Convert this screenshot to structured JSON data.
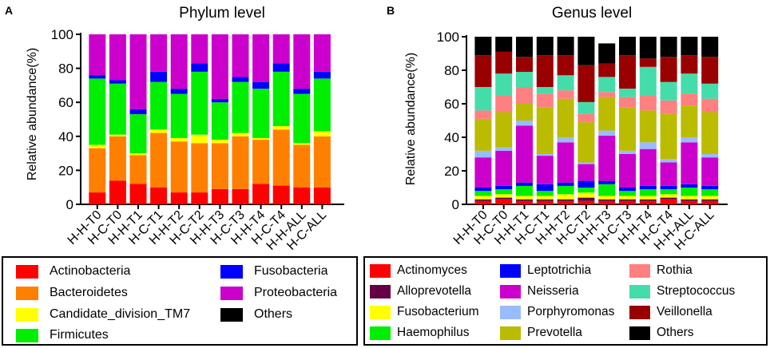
{
  "figure": {
    "panels": [
      {
        "letter": "A",
        "title": "Phylum level"
      },
      {
        "letter": "B",
        "title": "Genus level"
      }
    ],
    "ylabel": "Relative abundance(%)"
  },
  "chart_data": [
    {
      "type": "bar",
      "stacked": true,
      "title": "Phylum level",
      "xlabel": "",
      "ylabel": "Relative abundance(%)",
      "ylim": [
        0,
        100
      ],
      "yticks": [
        "0",
        "20",
        "40",
        "60",
        "80",
        "100"
      ],
      "categories": [
        "H-H-T0",
        "H-C-T0",
        "H-H-T1",
        "H-C-T1",
        "H-H-T2",
        "H-C-T2",
        "H-H-T3",
        "H-C-T3",
        "H-H-T4",
        "H-C-T4",
        "H-H-ALL",
        "H-C-ALL"
      ],
      "series": [
        {
          "name": "Actinobacteria",
          "color": "#ff0000",
          "values": [
            7,
            14,
            12,
            10,
            7,
            7,
            9,
            9,
            12,
            11,
            10,
            10
          ]
        },
        {
          "name": "Bacteroidetes",
          "color": "#ff8000",
          "values": [
            26,
            26,
            17,
            32,
            30,
            29,
            27,
            31,
            26,
            33,
            25,
            30
          ]
        },
        {
          "name": "Candidate_division_TM7",
          "color": "#ffff00",
          "values": [
            2,
            1,
            1,
            2,
            2,
            5,
            2,
            2,
            1,
            2,
            1,
            3
          ]
        },
        {
          "name": "Firmicutes",
          "color": "#00ee00",
          "values": [
            39,
            30,
            23,
            28,
            26,
            37,
            22,
            30,
            29,
            32,
            29,
            31
          ]
        },
        {
          "name": "Fusobacteria",
          "color": "#0000ff",
          "values": [
            2,
            2,
            3,
            6,
            3,
            5,
            2,
            3,
            4,
            5,
            3,
            4
          ]
        },
        {
          "name": "Proteobacteria",
          "color": "#cc00cc",
          "values": [
            24,
            27,
            44,
            22,
            32,
            17,
            38,
            25,
            28,
            17,
            32,
            22
          ]
        },
        {
          "name": "Others",
          "color": "#000000",
          "values": [
            0,
            0,
            0,
            0,
            0,
            0,
            0,
            0,
            0,
            0,
            0,
            0
          ]
        }
      ]
    },
    {
      "type": "bar",
      "stacked": true,
      "title": "Genus level",
      "xlabel": "",
      "ylabel": "Relative abundance(%)",
      "ylim": [
        0,
        100
      ],
      "yticks": [
        "0",
        "20",
        "40",
        "60",
        "80",
        "100"
      ],
      "categories": [
        "H-H-T0",
        "H-C-T0",
        "H-H-T1",
        "H-C-T1",
        "H-H-T2",
        "H-C-T2",
        "H-H-T3",
        "H-C-T3",
        "H-H-T4",
        "H-C-T4",
        "H-H-ALL",
        "H-C-ALL"
      ],
      "series": [
        {
          "name": "Actinomyces",
          "color": "#ff0000",
          "values": [
            2,
            3,
            2,
            2,
            2,
            2,
            2,
            2,
            2,
            3,
            2,
            2
          ]
        },
        {
          "name": "Alloprevotella",
          "color": "#660044",
          "values": [
            1,
            1,
            1,
            1,
            1,
            2,
            1,
            1,
            1,
            1,
            1,
            1
          ]
        },
        {
          "name": "Fusobacterium",
          "color": "#ffff00",
          "values": [
            2,
            2,
            2,
            2,
            3,
            3,
            2,
            2,
            2,
            2,
            2,
            2
          ]
        },
        {
          "name": "Haemophilus",
          "color": "#00ee00",
          "values": [
            3,
            3,
            6,
            3,
            5,
            3,
            7,
            3,
            4,
            3,
            5,
            4
          ]
        },
        {
          "name": "Leptotrichia",
          "color": "#0000ff",
          "values": [
            2,
            2,
            2,
            4,
            2,
            4,
            2,
            2,
            2,
            2,
            2,
            2
          ]
        },
        {
          "name": "Neisseria",
          "color": "#cc00cc",
          "values": [
            18,
            21,
            34,
            17,
            24,
            10,
            27,
            20,
            22,
            14,
            25,
            17
          ]
        },
        {
          "name": "Porphyromonas",
          "color": "#99bbff",
          "values": [
            4,
            2,
            3,
            1,
            3,
            1,
            3,
            2,
            4,
            2,
            3,
            2
          ]
        },
        {
          "name": "Prevotella",
          "color": "#bbbb00",
          "values": [
            19,
            21,
            10,
            28,
            23,
            24,
            20,
            26,
            19,
            27,
            19,
            25
          ]
        },
        {
          "name": "Rothia",
          "color": "#ff8080",
          "values": [
            5,
            10,
            10,
            8,
            5,
            5,
            3,
            6,
            9,
            8,
            7,
            8
          ]
        },
        {
          "name": "Streptococcus",
          "color": "#44ddaa",
          "values": [
            14,
            13,
            9,
            4,
            9,
            7,
            9,
            5,
            17,
            11,
            12,
            9
          ]
        },
        {
          "name": "Veillonella",
          "color": "#990000",
          "values": [
            19,
            13,
            9,
            19,
            12,
            22,
            8,
            20,
            5,
            15,
            11,
            16
          ]
        },
        {
          "name": "Others",
          "color": "#000000",
          "values": [
            11,
            9,
            12,
            11,
            11,
            17,
            12,
            11,
            13,
            12,
            11,
            12
          ]
        }
      ]
    }
  ]
}
